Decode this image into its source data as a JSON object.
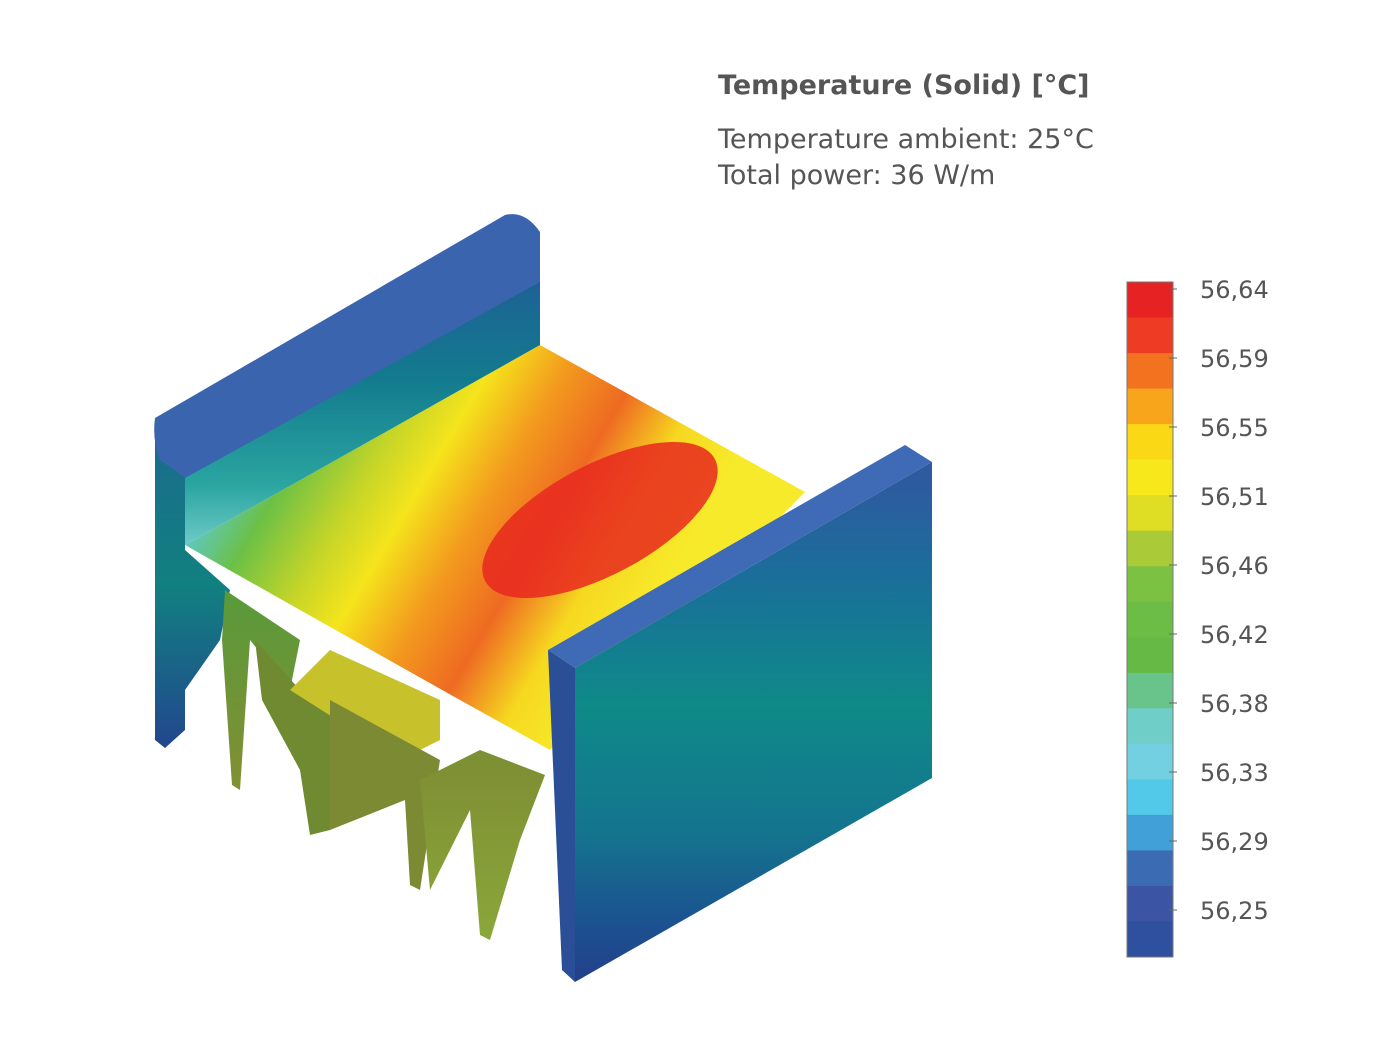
{
  "header": {
    "title": "Temperature (Solid) [°C]",
    "lines": [
      "Temperature ambient: 25°C",
      "Total power: 36 W/m"
    ]
  },
  "legend": {
    "ticks": [
      "56,64",
      "56,59",
      "56,55",
      "56,51",
      "56,46",
      "56,42",
      "56,38",
      "56,33",
      "56,29",
      "56,25"
    ]
  }
}
